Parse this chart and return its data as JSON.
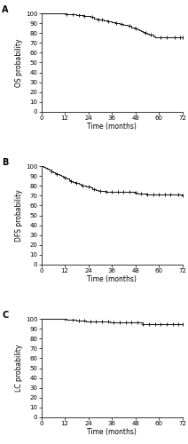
{
  "panels": [
    {
      "label": "A",
      "ylabel": "OS probability",
      "curve": {
        "times": [
          0,
          2,
          3,
          4,
          5,
          6,
          7,
          8,
          9,
          10,
          11,
          12,
          13,
          14,
          15,
          16,
          17,
          18,
          19,
          20,
          21,
          22,
          23,
          24,
          25,
          26,
          27,
          28,
          29,
          30,
          31,
          32,
          33,
          34,
          35,
          36,
          37,
          38,
          39,
          40,
          41,
          42,
          43,
          44,
          45,
          46,
          47,
          48,
          49,
          50,
          51,
          52,
          53,
          54,
          55,
          56,
          57,
          58,
          60,
          61,
          62,
          63,
          64,
          65,
          66,
          67,
          68,
          70,
          72
        ],
        "survival": [
          100,
          100,
          100,
          100,
          100,
          100,
          100,
          100,
          100,
          100,
          100,
          100,
          99,
          99,
          99,
          99,
          99,
          98,
          98,
          98,
          98,
          97,
          97,
          97,
          96,
          96,
          95,
          95,
          94,
          94,
          94,
          93,
          93,
          92,
          92,
          91,
          91,
          90,
          90,
          89,
          89,
          88,
          88,
          87,
          87,
          86,
          86,
          85,
          84,
          83,
          82,
          81,
          80,
          79,
          78,
          78,
          77,
          76,
          76,
          76,
          76,
          76,
          76,
          76,
          76,
          76,
          76,
          76,
          76
        ]
      },
      "censors": [
        13,
        16,
        19,
        22,
        26,
        29,
        31,
        34,
        38,
        41,
        45,
        48,
        53,
        56,
        61,
        64,
        68,
        71,
        72
      ],
      "xlim": [
        0,
        72
      ],
      "ylim": [
        0,
        100
      ],
      "xticks": [
        0,
        12,
        24,
        36,
        48,
        60,
        72
      ],
      "yticks": [
        0,
        10,
        20,
        30,
        40,
        50,
        60,
        70,
        80,
        90,
        100
      ]
    },
    {
      "label": "B",
      "ylabel": "DFS probability",
      "curve": {
        "times": [
          0,
          1,
          2,
          3,
          4,
          5,
          6,
          7,
          8,
          9,
          10,
          11,
          12,
          13,
          14,
          15,
          16,
          17,
          18,
          19,
          20,
          21,
          22,
          23,
          24,
          25,
          26,
          27,
          28,
          29,
          30,
          31,
          32,
          33,
          34,
          35,
          36,
          37,
          38,
          39,
          40,
          41,
          42,
          43,
          44,
          45,
          46,
          47,
          48,
          49,
          50,
          51,
          52,
          53,
          54,
          55,
          56,
          57,
          58,
          59,
          60,
          61,
          62,
          63,
          64,
          65,
          66,
          67,
          68,
          70,
          72
        ],
        "survival": [
          100,
          99,
          98,
          97,
          96,
          95,
          94,
          93,
          92,
          91,
          90,
          89,
          88,
          87,
          86,
          85,
          84,
          84,
          83,
          82,
          81,
          80,
          80,
          79,
          79,
          78,
          77,
          77,
          76,
          75,
          75,
          75,
          75,
          74,
          74,
          74,
          74,
          74,
          74,
          74,
          74,
          74,
          74,
          74,
          74,
          74,
          74,
          74,
          73,
          72,
          72,
          72,
          72,
          72,
          71,
          71,
          71,
          71,
          71,
          71,
          71,
          71,
          71,
          71,
          71,
          71,
          71,
          71,
          71,
          71,
          70
        ]
      },
      "censors": [
        5,
        8,
        12,
        15,
        18,
        21,
        24,
        27,
        30,
        33,
        36,
        39,
        42,
        45,
        48,
        51,
        54,
        57,
        60,
        63,
        66,
        70,
        72
      ],
      "xlim": [
        0,
        72
      ],
      "ylim": [
        0,
        100
      ],
      "xticks": [
        0,
        12,
        24,
        36,
        48,
        60,
        72
      ],
      "yticks": [
        0,
        10,
        20,
        30,
        40,
        50,
        60,
        70,
        80,
        90,
        100
      ]
    },
    {
      "label": "C",
      "ylabel": "LC probability",
      "curve": {
        "times": [
          0,
          5,
          8,
          10,
          11,
          12,
          13,
          14,
          15,
          16,
          17,
          18,
          19,
          20,
          21,
          22,
          23,
          24,
          25,
          26,
          27,
          28,
          29,
          30,
          31,
          32,
          33,
          34,
          35,
          36,
          37,
          38,
          39,
          40,
          41,
          42,
          43,
          44,
          45,
          46,
          47,
          48,
          49,
          50,
          51,
          52,
          53,
          54,
          55,
          56,
          57,
          58,
          59,
          60,
          61,
          62,
          63,
          64,
          65,
          66,
          67,
          68,
          70,
          72
        ],
        "survival": [
          100,
          100,
          100,
          100,
          100,
          100,
          99,
          99,
          99,
          99,
          99,
          98,
          98,
          98,
          98,
          98,
          97,
          97,
          97,
          97,
          97,
          97,
          97,
          97,
          97,
          97,
          97,
          97,
          96,
          96,
          96,
          96,
          96,
          96,
          96,
          96,
          96,
          96,
          96,
          96,
          96,
          96,
          96,
          96,
          96,
          95,
          95,
          95,
          95,
          95,
          95,
          95,
          95,
          95,
          95,
          95,
          95,
          95,
          95,
          95,
          95,
          95,
          95,
          95
        ]
      },
      "censors": [
        12,
        16,
        19,
        22,
        25,
        28,
        31,
        34,
        37,
        40,
        43,
        46,
        49,
        52,
        55,
        58,
        61,
        64,
        67,
        70,
        72
      ],
      "xlim": [
        0,
        72
      ],
      "ylim": [
        0,
        100
      ],
      "xticks": [
        0,
        12,
        24,
        36,
        48,
        60,
        72
      ],
      "yticks": [
        0,
        10,
        20,
        30,
        40,
        50,
        60,
        70,
        80,
        90,
        100
      ]
    }
  ],
  "xlabel": "Time (months)",
  "line_color": "#1a1a1a",
  "censor_color": "#1a1a1a",
  "bg_color": "#ffffff",
  "fontsize_label": 5.5,
  "fontsize_tick": 5.0,
  "fontsize_panel_label": 7,
  "linewidth": 0.75,
  "censor_markersize": 2.5,
  "censor_markeredgewidth": 0.7
}
